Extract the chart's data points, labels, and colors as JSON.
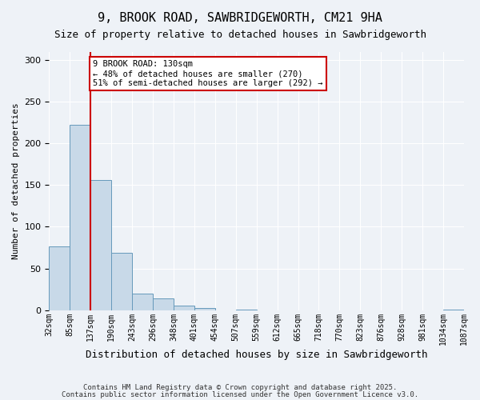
{
  "title1": "9, BROOK ROAD, SAWBRIDGEWORTH, CM21 9HA",
  "title2": "Size of property relative to detached houses in Sawbridgeworth",
  "xlabel": "Distribution of detached houses by size in Sawbridgeworth",
  "ylabel": "Number of detached properties",
  "bin_labels": [
    "32sqm",
    "85sqm",
    "137sqm",
    "190sqm",
    "243sqm",
    "296sqm",
    "348sqm",
    "401sqm",
    "454sqm",
    "507sqm",
    "559sqm",
    "612sqm",
    "665sqm",
    "718sqm",
    "770sqm",
    "823sqm",
    "876sqm",
    "928sqm",
    "981sqm",
    "1034sqm",
    "1087sqm"
  ],
  "bar_values": [
    76,
    223,
    156,
    69,
    20,
    14,
    5,
    2,
    0,
    1,
    0,
    0,
    0,
    0,
    0,
    0,
    0,
    0,
    0,
    1
  ],
  "bar_color": "#c8d9e8",
  "bar_edge_color": "#6699bb",
  "vline_color": "#cc0000",
  "annotation_text": "9 BROOK ROAD: 130sqm\n← 48% of detached houses are smaller (270)\n51% of semi-detached houses are larger (292) →",
  "annotation_box_color": "#ffffff",
  "annotation_box_edge": "#cc0000",
  "bg_color": "#eef2f7",
  "grid_color": "#ffffff",
  "footer1": "Contains HM Land Registry data © Crown copyright and database right 2025.",
  "footer2": "Contains public sector information licensed under the Open Government Licence v3.0.",
  "ylim": [
    0,
    310
  ],
  "yticks": [
    0,
    50,
    100,
    150,
    200,
    250,
    300
  ]
}
